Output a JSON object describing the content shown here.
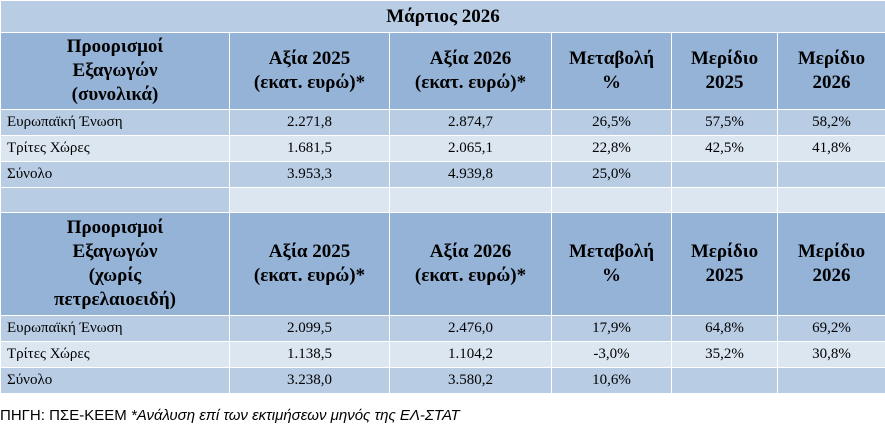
{
  "title": "Μάρτιος 2026",
  "tables": [
    {
      "header": [
        "Προορισμοί\nΕξαγωγών\n(συνολικά)",
        "Αξία 2025\n(εκατ. ευρώ)*",
        "Αξία 2026\n(εκατ. ευρώ)*",
        "Μεταβολή\n%",
        "Μερίδιο\n2025",
        "Μερίδιο\n2026"
      ],
      "rows": [
        [
          "Ευρωπαϊκή Ένωση",
          "2.271,8",
          "2.874,7",
          "26,5%",
          "57,5%",
          "58,2%"
        ],
        [
          "Τρίτες Χώρες",
          "1.681,5",
          "2.065,1",
          "22,8%",
          "42,5%",
          "41,8%"
        ],
        [
          "Σύνολο",
          "3.953,3",
          "4.939,8",
          "25,0%"
        ]
      ]
    },
    {
      "header": [
        "Προορισμοί\nΕξαγωγών\n(χωρίς\nπετρελαιοειδή)",
        "Αξία 2025\n(εκατ. ευρώ)*",
        "Αξία 2026\n(εκατ. ευρώ)*",
        "Μεταβολή\n%",
        "Μερίδιο\n2025",
        "Μερίδιο\n2026"
      ],
      "rows": [
        [
          "Ευρωπαϊκή Ένωση",
          "2.099,5",
          "2.476,0",
          "17,9%",
          "64,8%",
          "69,2%"
        ],
        [
          "Τρίτες Χώρες",
          "1.138,5",
          "1.104,2",
          "-3,0%",
          "35,2%",
          "30,8%"
        ],
        [
          "Σύνολο",
          "3.238,0",
          "3.580,2",
          "10,6%"
        ]
      ]
    }
  ],
  "footer": {
    "source": "ΠΗΓΗ: ΠΣΕ-ΚΕΕΜ",
    "note": "*Ανάλυση επί των εκτιμήσεων μηνός της ΕΛ-ΣΤΑΤ"
  }
}
